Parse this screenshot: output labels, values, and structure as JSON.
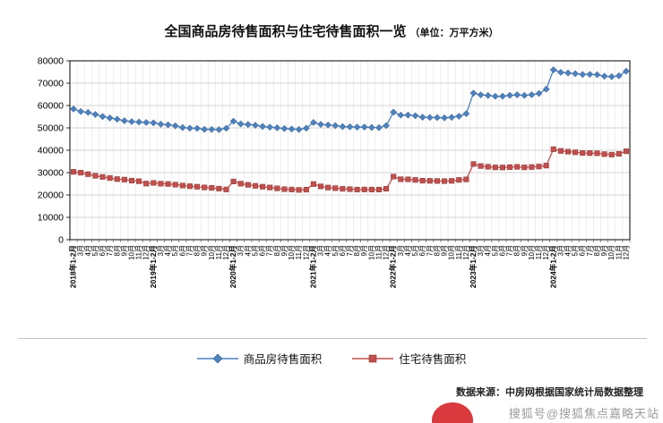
{
  "page": {
    "title": "全国商品房待售面积与住宅待售面积一览",
    "unit": "（单位：万平方米）",
    "source": "数据来源：中房网根据国家统计局数据整理",
    "watermark": "搜狐号@搜狐焦点嘉略天站"
  },
  "chart_data": {
    "type": "line",
    "title": "全国商品房待售面积与住宅待售面积一览",
    "xlabel": "",
    "ylabel": "万平方米",
    "ylim": [
      0,
      80000
    ],
    "yticks": [
      0,
      10000,
      20000,
      30000,
      40000,
      50000,
      60000,
      70000,
      80000
    ],
    "grid": true,
    "legend_position": "bottom",
    "categories": [
      "2018年1-2月",
      "3月",
      "4月",
      "5月",
      "6月",
      "7月",
      "8月",
      "9月",
      "10月",
      "11月",
      "12月",
      "2019年1-2月",
      "3月",
      "4月",
      "5月",
      "6月",
      "7月",
      "8月",
      "9月",
      "10月",
      "11月",
      "12月",
      "2020年1-2月",
      "3月",
      "4月",
      "5月",
      "6月",
      "7月",
      "8月",
      "9月",
      "10月",
      "11月",
      "12月",
      "2021年1-2月",
      "3月",
      "4月",
      "5月",
      "6月",
      "7月",
      "8月",
      "9月",
      "10月",
      "11月",
      "12月",
      "2022年1-2月",
      "3月",
      "4月",
      "5月",
      "6月",
      "7月",
      "8月",
      "9月",
      "10月",
      "11月",
      "12月",
      "2023年1-2月",
      "3月",
      "4月",
      "5月",
      "6月",
      "7月",
      "8月",
      "9月",
      "10月",
      "11月",
      "12月",
      "2024年1-2月",
      "3月",
      "4月",
      "5月",
      "6月",
      "7月",
      "8月",
      "9月",
      "10月",
      "11月",
      "12月"
    ],
    "series": [
      {
        "name": "商品房待售面积",
        "color": "#4f81bd",
        "edge": "#2e5a8a",
        "marker": "diamond",
        "values": [
          58468,
          57329,
          56911,
          56010,
          55083,
          54428,
          53873,
          53191,
          52789,
          52627,
          52414,
          52251,
          51646,
          51380,
          50928,
          50162,
          49876,
          49784,
          49346,
          49323,
          49221,
          49821,
          52981,
          51773,
          51512,
          51184,
          50662,
          50324,
          50052,
          49707,
          49492,
          49287,
          49850,
          52425,
          51552,
          51290,
          51005,
          50577,
          50492,
          50337,
          50385,
          50207,
          50092,
          51023,
          57026,
          55725,
          55734,
          55433,
          54784,
          54655,
          54605,
          54478,
          54734,
          55203,
          56366,
          65528,
          64770,
          64487,
          64120,
          64159,
          64564,
          64795,
          64537,
          64835,
          65385,
          67295,
          75969,
          74833,
          74553,
          74256,
          73894,
          73926,
          73783,
          73113,
          72909,
          73286,
          75327
        ]
      },
      {
        "name": "住宅待售面积",
        "color": "#c0504d",
        "edge": "#8c3836",
        "marker": "square",
        "values": [
          30328,
          29950,
          29291,
          28556,
          28071,
          27557,
          27094,
          26869,
          26408,
          26127,
          25091,
          25387,
          25052,
          24907,
          24618,
          24203,
          23912,
          23684,
          23355,
          23167,
          22836,
          22473,
          26029,
          25063,
          24526,
          24086,
          23691,
          23330,
          22943,
          22582,
          22429,
          22269,
          22379,
          24876,
          23843,
          23313,
          23042,
          22744,
          22588,
          22406,
          22452,
          22406,
          22415,
          22761,
          28219,
          27029,
          26974,
          26708,
          26379,
          26315,
          26261,
          26181,
          26301,
          26720,
          26947,
          33836,
          32930,
          32613,
          32324,
          32290,
          32462,
          32574,
          32337,
          32490,
          32713,
          33119,
          40480,
          39701,
          39349,
          39088,
          38753,
          38714,
          38648,
          38264,
          38043,
          38412,
          39538
        ]
      }
    ]
  }
}
